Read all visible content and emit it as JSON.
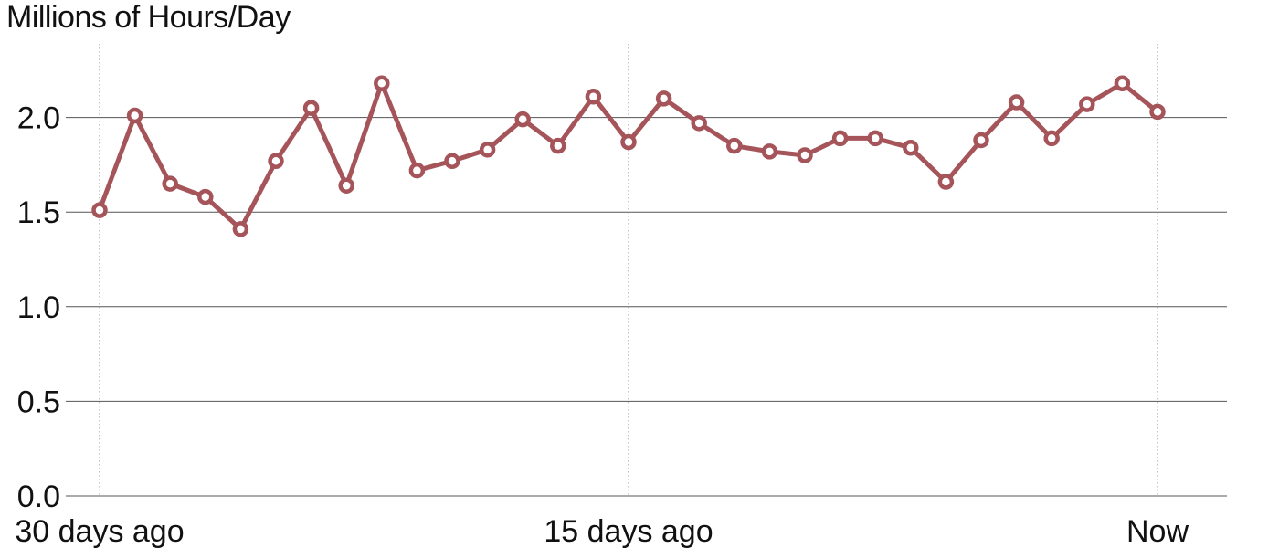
{
  "chart_data": {
    "type": "line",
    "title": "Millions of Hours/Day",
    "x": [
      -30,
      -29,
      -28,
      -27,
      -26,
      -25,
      -24,
      -23,
      -22,
      -21,
      -20,
      -19,
      -18,
      -17,
      -16,
      -15,
      -14,
      -13,
      -12,
      -11,
      -10,
      -9,
      -8,
      -7,
      -6,
      -5,
      -4,
      -3,
      -2,
      -1,
      0
    ],
    "series": [
      {
        "values": [
          1.51,
          2.01,
          1.65,
          1.58,
          1.41,
          1.77,
          2.05,
          1.64,
          2.18,
          1.72,
          1.77,
          1.83,
          1.99,
          1.85,
          2.11,
          1.87,
          2.1,
          1.97,
          1.85,
          1.82,
          1.8,
          1.89,
          1.89,
          1.84,
          1.66,
          1.88,
          2.08,
          1.89,
          2.07,
          2.18,
          2.03
        ]
      }
    ],
    "ylim": [
      0,
      2.3
    ],
    "yticks": [
      "0.0",
      "0.5",
      "1.0",
      "1.5",
      "2.0"
    ],
    "xticks": [
      {
        "x": -30,
        "label": "30 days ago"
      },
      {
        "x": -15,
        "label": "15 days ago"
      },
      {
        "x": 0,
        "label": "Now"
      }
    ],
    "grid": true,
    "line_color": "#a5545a"
  }
}
